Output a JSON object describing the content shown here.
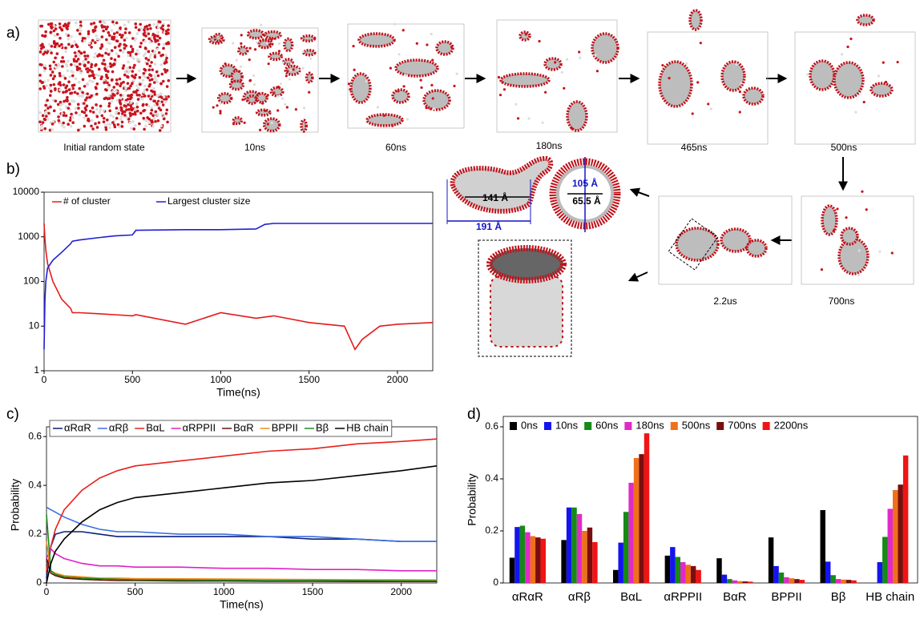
{
  "panel_a": {
    "label": "a)",
    "captions": [
      "Initial random state",
      "10ns",
      "60ns",
      "180ns",
      "465ns",
      "500ns",
      "700ns",
      "2.2us"
    ],
    "dimensions": [
      "141 Å",
      "191 Å",
      "105 Å",
      "65.5 Å"
    ]
  },
  "chart_data": [
    {
      "type": "line",
      "panel_label": "b)",
      "x_label": "Time(ns)",
      "x": [
        0,
        5,
        10,
        20,
        50,
        100,
        150,
        160,
        200,
        300,
        400,
        500,
        520,
        800,
        1000,
        1200,
        1250,
        1300,
        1500,
        1700,
        1760,
        1800,
        1900,
        2000,
        2200
      ],
      "series": [
        {
          "name": "# of cluster",
          "color": "#e41a1c",
          "values": [
            2000,
            900,
            500,
            250,
            100,
            40,
            25,
            20,
            20,
            19,
            18,
            17,
            18,
            11,
            20,
            15,
            16,
            17,
            12,
            10,
            3,
            5,
            10,
            11,
            12
          ]
        },
        {
          "name": "Largest cluster size",
          "color": "#1f1fd6",
          "values": [
            3,
            40,
            100,
            200,
            300,
            450,
            700,
            800,
            850,
            950,
            1050,
            1100,
            1400,
            1450,
            1450,
            1500,
            1900,
            2000,
            2000,
            2000,
            2000,
            2000,
            2000,
            2000,
            2000
          ]
        }
      ],
      "xlim": [
        0,
        2200
      ],
      "xticks": [
        0,
        500,
        1000,
        1500,
        2000
      ],
      "ylim": [
        1,
        10000
      ],
      "yticks": [
        1,
        10,
        100,
        1000,
        10000
      ],
      "log_scale": true,
      "legend": "top-left"
    },
    {
      "type": "line",
      "panel_label": "c)",
      "x_label": "Time(ns)",
      "y_label": "Probability",
      "x": [
        0,
        25,
        50,
        100,
        200,
        300,
        400,
        500,
        750,
        1000,
        1250,
        1500,
        1750,
        2000,
        2200
      ],
      "series": [
        {
          "name": "αRαR",
          "color": "#0b1f7a",
          "values": [
            0.02,
            0.15,
            0.2,
            0.21,
            0.21,
            0.2,
            0.19,
            0.19,
            0.19,
            0.19,
            0.19,
            0.18,
            0.18,
            0.17,
            0.17
          ]
        },
        {
          "name": "αRβ",
          "color": "#3a6fe0",
          "values": [
            0.31,
            0.3,
            0.29,
            0.27,
            0.24,
            0.22,
            0.21,
            0.21,
            0.2,
            0.2,
            0.19,
            0.19,
            0.18,
            0.17,
            0.17
          ]
        },
        {
          "name": "BαL",
          "color": "#e8201c",
          "values": [
            0.05,
            0.15,
            0.22,
            0.3,
            0.38,
            0.43,
            0.46,
            0.48,
            0.5,
            0.52,
            0.54,
            0.55,
            0.57,
            0.58,
            0.59
          ]
        },
        {
          "name": "αRPPII",
          "color": "#e020c8",
          "values": [
            0.1,
            0.14,
            0.12,
            0.1,
            0.08,
            0.07,
            0.07,
            0.065,
            0.065,
            0.06,
            0.06,
            0.055,
            0.055,
            0.05,
            0.05
          ]
        },
        {
          "name": "BαR",
          "color": "#6b0f0f",
          "values": [
            0.1,
            0.04,
            0.03,
            0.02,
            0.015,
            0.012,
            0.01,
            0.01,
            0.008,
            0.008,
            0.007,
            0.007,
            0.006,
            0.006,
            0.006
          ]
        },
        {
          "name": "BPPII",
          "color": "#f08c1e",
          "values": [
            0.17,
            0.05,
            0.04,
            0.03,
            0.025,
            0.02,
            0.02,
            0.018,
            0.017,
            0.016,
            0.015,
            0.014,
            0.013,
            0.013,
            0.012
          ]
        },
        {
          "name": "Bβ",
          "color": "#1a8a1a",
          "values": [
            0.28,
            0.05,
            0.035,
            0.025,
            0.02,
            0.017,
            0.015,
            0.013,
            0.012,
            0.011,
            0.01,
            0.01,
            0.01,
            0.009,
            0.009
          ]
        },
        {
          "name": "HB chain",
          "color": "#000000",
          "values": [
            0,
            0.08,
            0.13,
            0.18,
            0.25,
            0.3,
            0.33,
            0.35,
            0.37,
            0.39,
            0.41,
            0.42,
            0.44,
            0.46,
            0.48
          ]
        }
      ],
      "xlim": [
        0,
        2200
      ],
      "xticks": [
        0,
        500,
        1000,
        1500,
        2000
      ],
      "ylim": [
        0,
        0.64
      ],
      "yticks": [
        0,
        0.2,
        0.4,
        0.6
      ],
      "log_scale": false,
      "legend": "top"
    },
    {
      "type": "bar",
      "panel_label": "d)",
      "y_label": "Probability",
      "categories": [
        "αRαR",
        "αRβ",
        "BαL",
        "αRPPII",
        "BαR",
        "BPPII",
        "Bβ",
        "HB chain"
      ],
      "series": [
        {
          "name": "0ns",
          "color": "#000000",
          "values": [
            0.097,
            0.165,
            0.05,
            0.105,
            0.095,
            0.175,
            0.28,
            0
          ]
        },
        {
          "name": "10ns",
          "color": "#1414f0",
          "values": [
            0.215,
            0.29,
            0.155,
            0.138,
            0.032,
            0.065,
            0.082,
            0.08
          ]
        },
        {
          "name": "60ns",
          "color": "#158a15",
          "values": [
            0.22,
            0.29,
            0.273,
            0.1,
            0.015,
            0.04,
            0.03,
            0.177
          ]
        },
        {
          "name": "180ns",
          "color": "#e02ac8",
          "values": [
            0.195,
            0.265,
            0.385,
            0.08,
            0.01,
            0.022,
            0.015,
            0.285
          ]
        },
        {
          "name": "500ns",
          "color": "#f0701a",
          "values": [
            0.18,
            0.2,
            0.48,
            0.07,
            0.007,
            0.018,
            0.013,
            0.357
          ]
        },
        {
          "name": "700ns",
          "color": "#7a0e0e",
          "values": [
            0.175,
            0.213,
            0.495,
            0.065,
            0.006,
            0.015,
            0.012,
            0.378
          ]
        },
        {
          "name": "2200ns",
          "color": "#f01414",
          "values": [
            0.17,
            0.157,
            0.575,
            0.05,
            0.005,
            0.012,
            0.01,
            0.49
          ]
        }
      ],
      "ylim": [
        0,
        0.64
      ],
      "yticks": [
        0,
        0.2,
        0.4,
        0.6
      ],
      "legend": "top"
    }
  ]
}
